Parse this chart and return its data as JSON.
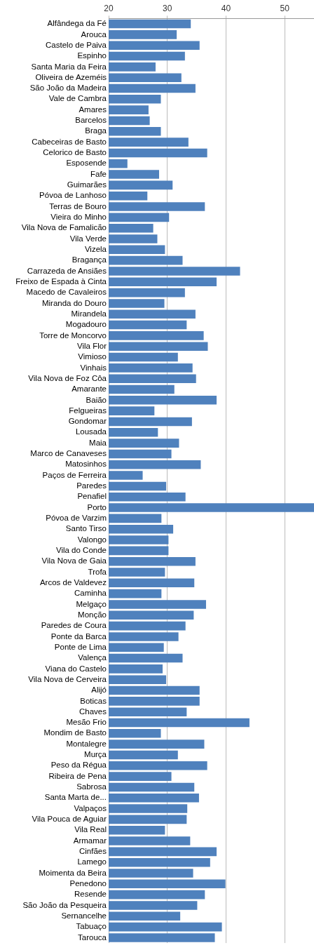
{
  "chart_data": {
    "type": "bar",
    "orientation": "horizontal",
    "color": "#4f81bd",
    "grid": "x",
    "xlim": [
      20,
      55
    ],
    "xticks": [
      20,
      30,
      40,
      50
    ],
    "categories": [
      "Alfândega da Fé",
      "Arouca",
      "Castelo de Paiva",
      "Espinho",
      "Santa Maria da Feira",
      "Oliveira de Azeméis",
      "São João da Madeira",
      "Vale de Cambra",
      "Amares",
      "Barcelos",
      "Braga",
      "Cabeceiras de Basto",
      "Celorico de Basto",
      "Esposende",
      "Fafe",
      "Guimarães",
      "Póvoa de Lanhoso",
      "Terras de Bouro",
      "Vieira do Minho",
      "Vila Nova de Famalicão",
      "Vila Verde",
      "Vizela",
      "Bragança",
      "Carrazeda de Ansiães",
      "Freixo de Espada à Cinta",
      "Macedo de Cavaleiros",
      "Miranda do Douro",
      "Mirandela",
      "Mogadouro",
      "Torre de Moncorvo",
      "Vila Flor",
      "Vimioso",
      "Vinhais",
      "Vila Nova de Foz Côa",
      "Amarante",
      "Baião",
      "Felgueiras",
      "Gondomar",
      "Lousada",
      "Maia",
      "Marco de Canaveses",
      "Matosinhos",
      "Paços de Ferreira",
      "Paredes",
      "Penafiel",
      "Porto",
      "Póvoa de Varzim",
      "Santo Tirso",
      "Valongo",
      "Vila do Conde",
      "Vila Nova de Gaia",
      "Trofa",
      "Arcos de Valdevez",
      "Caminha",
      "Melgaço",
      "Monção",
      "Paredes de Coura",
      "Ponte da Barca",
      "Ponte de Lima",
      "Valença",
      "Viana do Castelo",
      "Vila Nova de Cerveira",
      "Alijó",
      "Boticas",
      "Chaves",
      "Mesão Frio",
      "Mondim de Basto",
      "Montalegre",
      "Murça",
      "Peso da Régua",
      "Ribeira de Pena",
      "Sabrosa",
      "Santa Marta de...",
      "Valpaços",
      "Vila Pouca de Aguiar",
      "Vila Real",
      "Armamar",
      "Cinfães",
      "Lamego",
      "Moimenta da Beira",
      "Penedono",
      "Resende",
      "São João da Pesqueira",
      "Sernancelhe",
      "Tabuaço",
      "Tarouca"
    ],
    "values": [
      34.0,
      31.6,
      35.5,
      33.0,
      28.0,
      32.4,
      34.8,
      28.9,
      26.8,
      27.0,
      28.9,
      33.6,
      36.8,
      23.2,
      28.6,
      30.9,
      26.6,
      36.4,
      30.3,
      27.6,
      28.3,
      29.6,
      32.6,
      42.4,
      38.4,
      33.0,
      29.5,
      34.8,
      33.3,
      36.2,
      36.9,
      31.8,
      34.3,
      34.9,
      31.2,
      38.4,
      27.8,
      34.2,
      28.4,
      32.0,
      30.7,
      35.7,
      25.8,
      29.8,
      33.1,
      55,
      29.0,
      31.0,
      30.2,
      30.2,
      34.8,
      29.6,
      34.6,
      29.0,
      36.6,
      34.5,
      33.1,
      31.9,
      29.4,
      32.6,
      29.2,
      29.8,
      35.5,
      35.5,
      33.3,
      44.0,
      28.9,
      36.3,
      31.8,
      36.8,
      30.7,
      34.6,
      35.4,
      33.4,
      33.3,
      29.6,
      33.9,
      38.4,
      37.3,
      34.4,
      39.9,
      36.4,
      35.1,
      32.2,
      39.3,
      38.1
    ]
  }
}
